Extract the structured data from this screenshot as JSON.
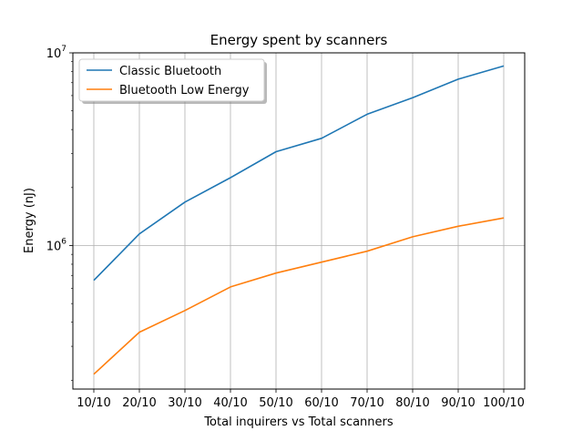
{
  "chart_data": {
    "type": "line",
    "title": "Energy spent by scanners",
    "xlabel": "Total inquirers vs Total scanners",
    "ylabel": "Energy (nJ)",
    "categories": [
      "10/10",
      "20/10",
      "30/10",
      "40/10",
      "50/10",
      "60/10",
      "70/10",
      "80/10",
      "90/10",
      "100/10"
    ],
    "y_scale": "log",
    "ylim": [
      180000,
      10000000
    ],
    "y_ticks": [
      {
        "value": 1000000,
        "base": "10",
        "exp": "6"
      },
      {
        "value": 10000000,
        "base": "10",
        "exp": "7"
      }
    ],
    "grid": true,
    "legend_position": "top-left",
    "series": [
      {
        "name": "Classic Bluetooth",
        "color": "#1f77b4",
        "values": [
          660000,
          1150000,
          1680000,
          2250000,
          3070000,
          3600000,
          4800000,
          5850000,
          7300000,
          8550000
        ]
      },
      {
        "name": "Bluetooth Low Energy",
        "color": "#ff7f0e",
        "values": [
          215000,
          355000,
          460000,
          610000,
          720000,
          820000,
          935000,
          1110000,
          1260000,
          1390000
        ]
      }
    ]
  }
}
